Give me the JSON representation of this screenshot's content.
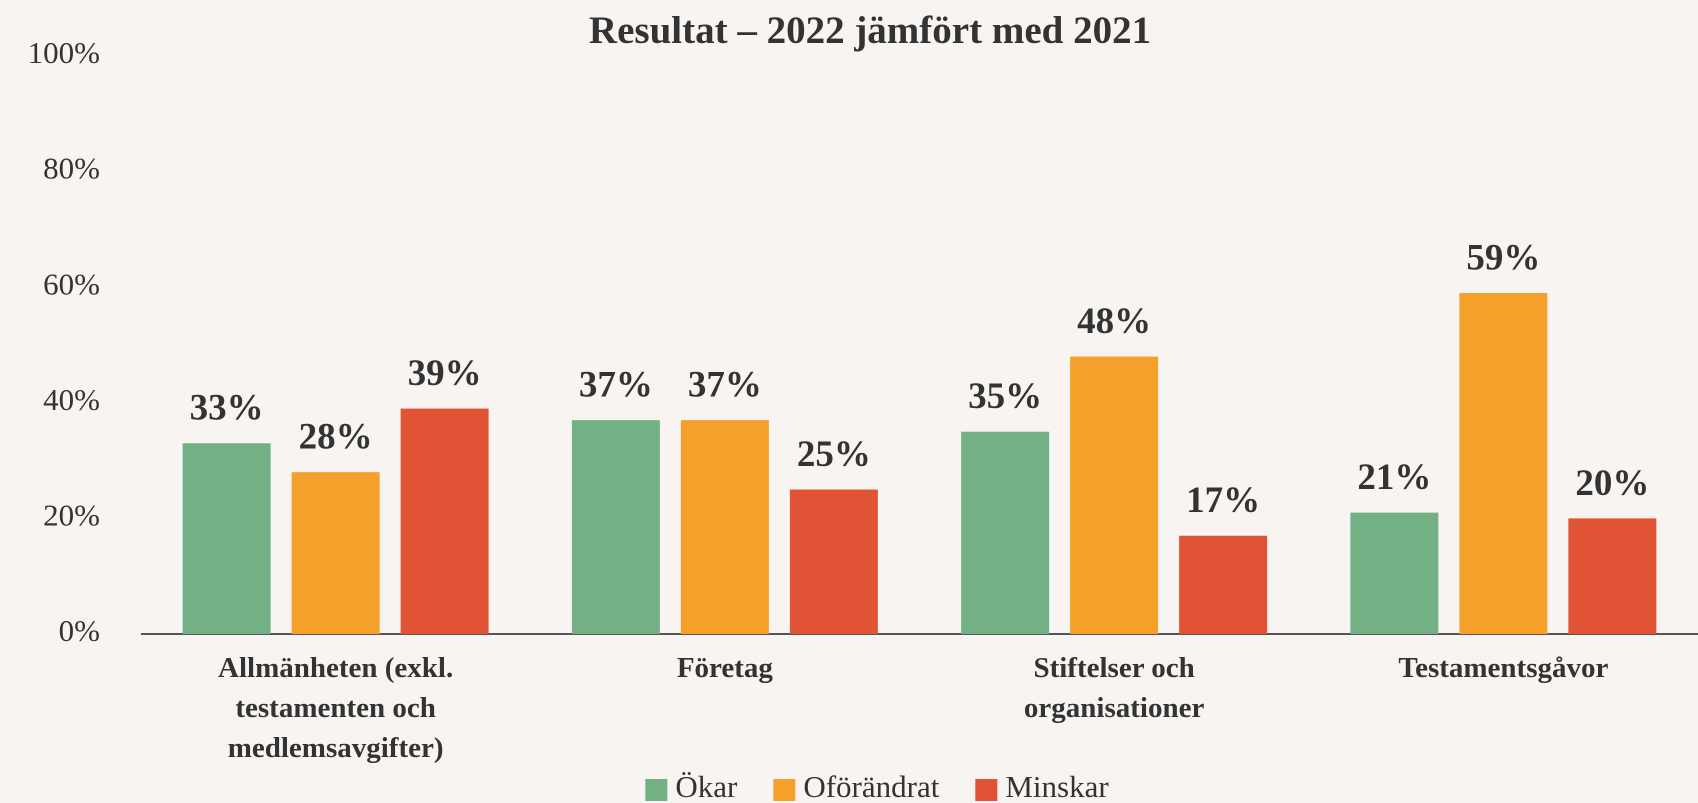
{
  "chart_data": {
    "type": "bar",
    "title": "Resultat – 2022 jämfört med 2021",
    "categories": [
      "Allmänheten (exkl. testamenten och medlemsavgifter)",
      "Företag",
      "Stiftelser och organisationer",
      "Testamentsgåvor"
    ],
    "series": [
      {
        "name": "Ökar",
        "color": "#73b083",
        "values": [
          33,
          37,
          35,
          21
        ],
        "value_labels": [
          "33%",
          "37%",
          "35%",
          "21%"
        ]
      },
      {
        "name": "Oförändrat",
        "color": "#f5a02a",
        "values": [
          28,
          37,
          48,
          59
        ],
        "value_labels": [
          "28%",
          "37%",
          "48%",
          "59%"
        ]
      },
      {
        "name": "Minskar",
        "color": "#e05335",
        "values": [
          39,
          25,
          17,
          20
        ],
        "value_labels": [
          "39%",
          "25%",
          "17%",
          "20%"
        ]
      }
    ],
    "ylim": [
      0,
      100
    ],
    "yticks": [
      {
        "value": 0,
        "label": "0%"
      },
      {
        "value": 20,
        "label": "20%"
      },
      {
        "value": 40,
        "label": "40%"
      },
      {
        "value": 60,
        "label": "60%"
      },
      {
        "value": 80,
        "label": "80%"
      },
      {
        "value": 100,
        "label": "100%"
      }
    ],
    "legend": "bottom",
    "grid": false
  }
}
